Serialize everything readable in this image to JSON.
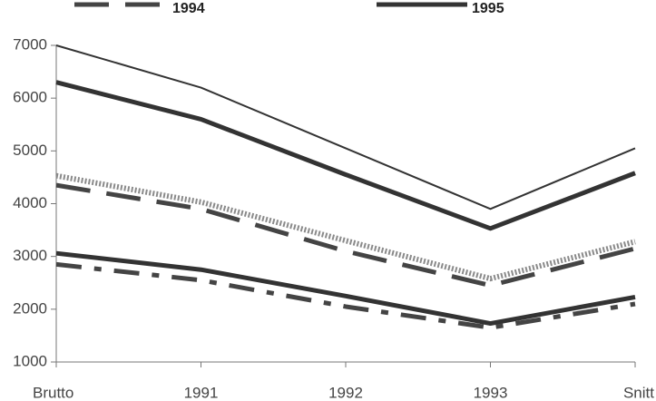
{
  "chart_data": {
    "type": "line",
    "categories": [
      "Brutto",
      "1991",
      "1992",
      "1993",
      "Snitt"
    ],
    "series": [
      {
        "color": "#333333",
        "style": "thin",
        "values": [
          7000,
          6200,
          5050,
          3900,
          5050
        ]
      },
      {
        "name": "1995",
        "color": "#333333",
        "style": "thick",
        "values": [
          6300,
          5600,
          4550,
          3530,
          4580
        ]
      },
      {
        "color": "#8a8a8a",
        "style": "hatched",
        "values": [
          4530,
          4030,
          3300,
          2580,
          3280
        ]
      },
      {
        "name": "1994",
        "color": "#444444",
        "style": "dashed",
        "values": [
          4350,
          3900,
          3100,
          2450,
          3150
        ]
      },
      {
        "color": "#333333",
        "style": "thick",
        "values": [
          3060,
          2750,
          2250,
          1730,
          2230
        ]
      },
      {
        "color": "#444444",
        "style": "dashdot",
        "values": [
          2850,
          2550,
          2050,
          1650,
          2100
        ]
      }
    ],
    "ylim": [
      1000,
      7000
    ],
    "yticks": [
      1000,
      2000,
      3000,
      4000,
      5000,
      6000,
      7000
    ],
    "grid": false
  }
}
